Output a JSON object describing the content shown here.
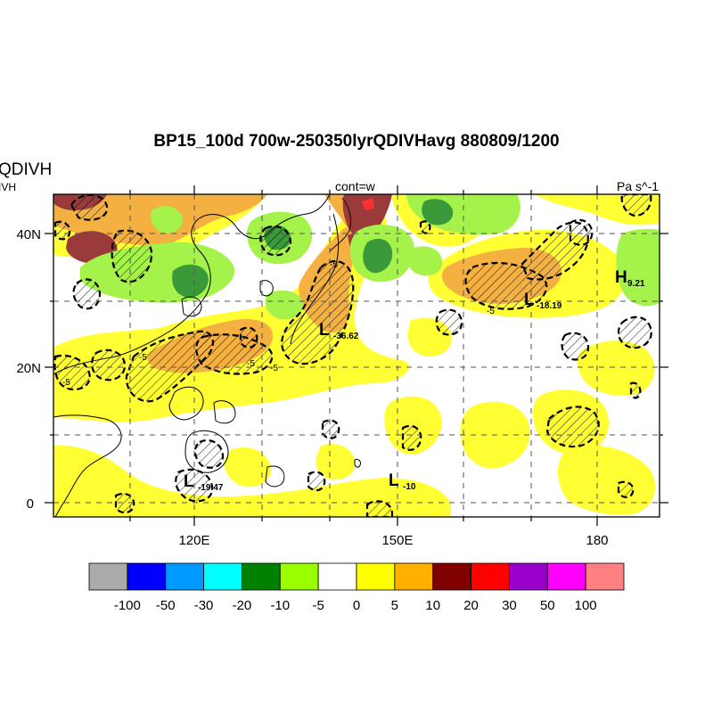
{
  "title": "BP15_100d 700w-250350lyrQDIVHavg  880809/1200",
  "left_label_top": "QDIVH",
  "left_label_bottom": "IVH",
  "center_label": "cont=w",
  "units_label": "Pa s^-1",
  "axes": {
    "lat_ticks": [
      "40N",
      "20N",
      "0"
    ],
    "lon_ticks": [
      "120E",
      "150E",
      "180"
    ]
  },
  "extrema": [
    {
      "type": "L",
      "value": "-36.62"
    },
    {
      "type": "L",
      "value": "-18.19"
    },
    {
      "type": "L",
      "value": "-19.47"
    },
    {
      "type": "L",
      "value": "-10"
    },
    {
      "type": "H",
      "value": "9.21"
    }
  ],
  "contour_labels": [
    "-5",
    "-5",
    "-5",
    "-5",
    "-5",
    "-5"
  ],
  "colorbar": {
    "colors": [
      "#aaaaaa",
      "#0000ff",
      "#0099ff",
      "#00ffff",
      "#008000",
      "#99ff00",
      "#ffffff",
      "#ffff00",
      "#ffb000",
      "#800000",
      "#ff0000",
      "#9900cc",
      "#ff00ff",
      "#ff8080"
    ],
    "labels": [
      "-100",
      "-50",
      "-30",
      "-20",
      "-10",
      "-5",
      "0",
      "5",
      "10",
      "20",
      "30",
      "50",
      "100"
    ]
  },
  "colors": {
    "yellow": "#ffff33",
    "orange": "#f5b042",
    "darkred": "#9b3a3a",
    "ltgreen": "#a4f24a",
    "dkgreen": "#3a9a3a"
  }
}
